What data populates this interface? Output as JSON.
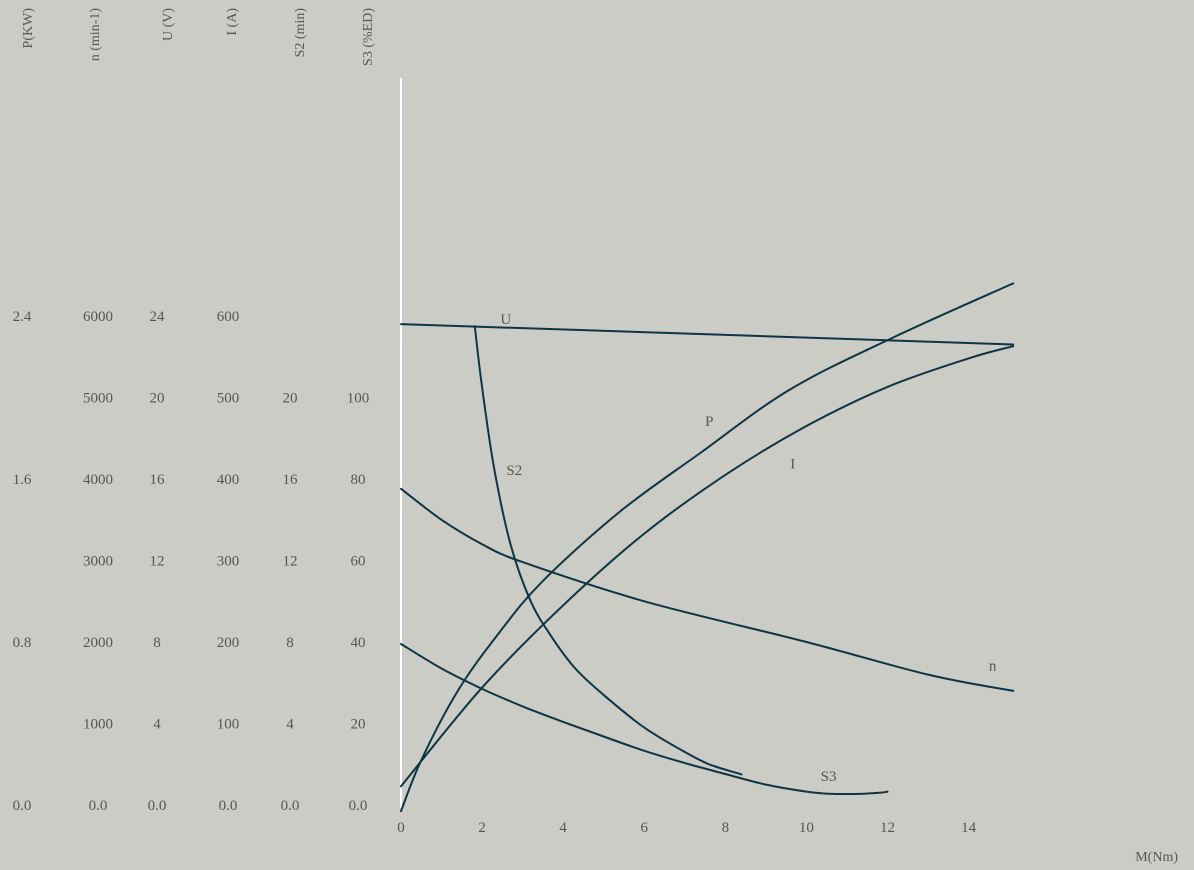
{
  "chart_data": {
    "type": "line",
    "title": "",
    "xlabel": "M(Nm)",
    "xticks": [
      0,
      2,
      4,
      6,
      8,
      10,
      12,
      14
    ],
    "xlim": [
      0,
      15.12
    ],
    "grid": false,
    "legend": "none",
    "y_axes": [
      {
        "key": "P",
        "label": "P(KW)",
        "ticks": [
          "0.0",
          "0.8",
          "1.6",
          "2.4"
        ],
        "values": [
          0,
          0.8,
          1.6,
          2.4
        ],
        "unit_per_level": 0.4
      },
      {
        "key": "n",
        "label": "n  (min-1)",
        "ticks": [
          "0.0",
          "1000",
          "2000",
          "3000",
          "4000",
          "5000",
          "6000"
        ],
        "values": [
          0,
          1000,
          2000,
          3000,
          4000,
          5000,
          6000
        ],
        "unit_per_level": 1000
      },
      {
        "key": "U",
        "label": "U  (V)",
        "ticks": [
          "0.0",
          "4",
          "8",
          "12",
          "16",
          "20",
          "24"
        ],
        "values": [
          0,
          4,
          8,
          12,
          16,
          20,
          24
        ],
        "unit_per_level": 4
      },
      {
        "key": "I",
        "label": "I  (A)",
        "ticks": [
          "0.0",
          "100",
          "200",
          "300",
          "400",
          "500",
          "600"
        ],
        "values": [
          0,
          100,
          200,
          300,
          400,
          500,
          600
        ],
        "unit_per_level": 100
      },
      {
        "key": "S2",
        "label": "S2  (min)",
        "ticks": [
          "0.0",
          "4",
          "8",
          "12",
          "16",
          "20"
        ],
        "values": [
          0,
          4,
          8,
          12,
          16,
          20
        ],
        "unit_per_level": 4
      },
      {
        "key": "S3",
        "label": "S3  (%ED)",
        "ticks": [
          "0.0",
          "20",
          "40",
          "60",
          "80",
          "100"
        ],
        "values": [
          0,
          20,
          40,
          60,
          80,
          100
        ],
        "unit_per_level": 20
      }
    ],
    "series": [
      {
        "name": "U",
        "axis": "U",
        "label_at": [
          2.45,
          23.6
        ],
        "points": [
          [
            0,
            23.6
          ],
          [
            15.1,
            22.6
          ]
        ]
      },
      {
        "name": "P",
        "axis": "P",
        "label_at": [
          7.5,
          1.86
        ],
        "points": [
          [
            0,
            -0.03
          ],
          [
            0.5,
            0.22
          ],
          [
            1.4,
            0.56
          ],
          [
            2.4,
            0.84
          ],
          [
            3.5,
            1.1
          ],
          [
            5.4,
            1.44
          ],
          [
            7.4,
            1.73
          ],
          [
            9.6,
            2.04
          ],
          [
            12.2,
            2.3
          ],
          [
            15.1,
            2.56
          ]
        ]
      },
      {
        "name": "I",
        "axis": "I",
        "label_at": [
          9.6,
          413
        ],
        "points": [
          [
            0,
            23
          ],
          [
            2,
            144
          ],
          [
            4,
            245
          ],
          [
            6,
            333
          ],
          [
            8,
            405
          ],
          [
            10,
            465
          ],
          [
            12,
            513
          ],
          [
            14,
            548
          ],
          [
            15.1,
            563
          ]
        ]
      },
      {
        "name": "n",
        "axis": "n",
        "label_at": [
          14.5,
          1650
        ],
        "points": [
          [
            0,
            3880
          ],
          [
            1,
            3500
          ],
          [
            2,
            3200
          ],
          [
            3,
            2980
          ],
          [
            6,
            2500
          ],
          [
            10,
            2000
          ],
          [
            13,
            1600
          ],
          [
            15.1,
            1400
          ]
        ]
      },
      {
        "name": "S2",
        "axis": "S2",
        "label_at": [
          2.6,
          16.2
        ],
        "points": [
          [
            1.82,
            23.5
          ],
          [
            2.0,
            20.5
          ],
          [
            2.3,
            16.5
          ],
          [
            2.7,
            12.8
          ],
          [
            3.2,
            10.0
          ],
          [
            3.7,
            8.3
          ],
          [
            4.3,
            6.7
          ],
          [
            5.0,
            5.4
          ],
          [
            6.0,
            3.8
          ],
          [
            7.0,
            2.6
          ],
          [
            7.6,
            2.0
          ],
          [
            8.4,
            1.5
          ]
        ]
      },
      {
        "name": "S3",
        "axis": "S3",
        "label_at": [
          10.35,
          5.9
        ],
        "points": [
          [
            0,
            39.5
          ],
          [
            1,
            33.5
          ],
          [
            2,
            28.5
          ],
          [
            3,
            24.2
          ],
          [
            4,
            20.4
          ],
          [
            5,
            16.8
          ],
          [
            6,
            13.3
          ],
          [
            7,
            10.3
          ],
          [
            8,
            7.6
          ],
          [
            9,
            5.0
          ],
          [
            10,
            3.3
          ],
          [
            10.5,
            2.8
          ],
          [
            11.2,
            2.7
          ],
          [
            11.8,
            3.0
          ],
          [
            12.0,
            3.3
          ]
        ]
      }
    ]
  }
}
